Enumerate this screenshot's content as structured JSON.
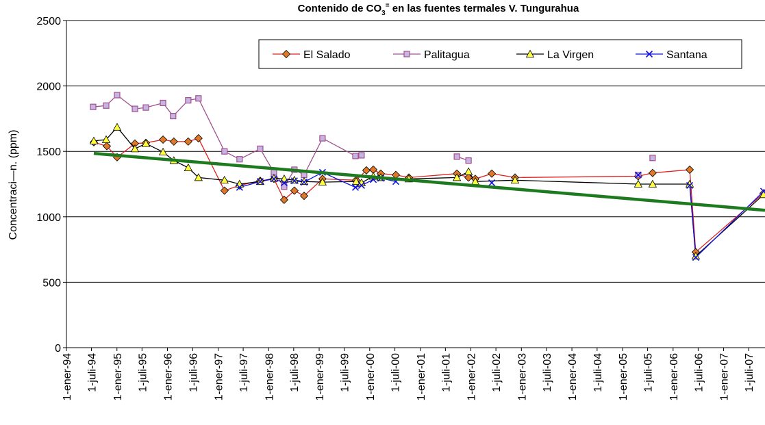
{
  "chart_data": {
    "type": "line",
    "title": {
      "text": "Contenido de CO",
      "sub": "3",
      "sup": "=",
      "rest": " en las fuentes termales V. Tungurahua"
    },
    "y_label": "Concentraci—n. (ppm)",
    "xlim": [
      "1994-01-01",
      "2007-10-27"
    ],
    "ylim": [
      0,
      2500
    ],
    "yticks": [
      0,
      500,
      1000,
      1500,
      2000,
      2500
    ],
    "xticks": [
      {
        "value": "1994-01-01",
        "label": "1-ener-94"
      },
      {
        "value": "1994-07-01",
        "label": "1-juli-94"
      },
      {
        "value": "1995-01-01",
        "label": "1-ener-95"
      },
      {
        "value": "1995-07-01",
        "label": "1-juli-95"
      },
      {
        "value": "1996-01-01",
        "label": "1-ener-96"
      },
      {
        "value": "1996-07-01",
        "label": "1-juli-96"
      },
      {
        "value": "1997-01-01",
        "label": "1-ener-97"
      },
      {
        "value": "1997-07-01",
        "label": "1-juli-97"
      },
      {
        "value": "1998-01-01",
        "label": "1-ener-98"
      },
      {
        "value": "1998-07-01",
        "label": "1-juli-98"
      },
      {
        "value": "1999-01-01",
        "label": "1-ener-99"
      },
      {
        "value": "1999-07-01",
        "label": "1-juli-99"
      },
      {
        "value": "2000-01-01",
        "label": "1-ener-00"
      },
      {
        "value": "2000-07-01",
        "label": "1-juli-00"
      },
      {
        "value": "2001-01-01",
        "label": "1-ener-01"
      },
      {
        "value": "2001-07-01",
        "label": "1-juli-01"
      },
      {
        "value": "2002-01-01",
        "label": "1-ener-02"
      },
      {
        "value": "2002-07-01",
        "label": "1-juli-02"
      },
      {
        "value": "2003-01-01",
        "label": "1-ener-03"
      },
      {
        "value": "2003-07-01",
        "label": "1-juli-03"
      },
      {
        "value": "2004-01-01",
        "label": "1-ener-04"
      },
      {
        "value": "2004-07-01",
        "label": "1-juli-04"
      },
      {
        "value": "2005-01-01",
        "label": "1-ener-05"
      },
      {
        "value": "2005-07-01",
        "label": "1-juli-05"
      },
      {
        "value": "2006-01-01",
        "label": "1-ener-06"
      },
      {
        "value": "2006-07-01",
        "label": "1-juli-06"
      },
      {
        "value": "2007-01-01",
        "label": "1-ener-07"
      },
      {
        "value": "2007-07-01",
        "label": "1-juli-07"
      }
    ],
    "grid": true,
    "series": [
      {
        "name": "El Salado",
        "color": "#dd2020",
        "marker": "diamond",
        "marker_color": "#e07828",
        "x": [
          "1994-07-18",
          "1994-10-20",
          "1995-01-02",
          "1995-05-11",
          "1995-07-29",
          "1995-11-30",
          "1996-02-16",
          "1996-05-30",
          "1996-08-12",
          "1997-02-16",
          "1997-06-05",
          "1997-11-01",
          "1998-02-08",
          "1998-04-23",
          "1998-07-06",
          "1998-09-14",
          "1999-01-25",
          "1999-09-25",
          "1999-12-08",
          "2000-01-27",
          "2000-03-21",
          "2000-07-08",
          "2000-10-10",
          "2001-09-22",
          "2001-12-15",
          "2002-02-02",
          "2002-06-01",
          "2002-11-16",
          "2005-04-24",
          "2005-08-06",
          "2006-05-01",
          "2006-06-14",
          "2007-10-17"
        ],
        "values": [
          1570,
          1540,
          1455,
          1560,
          1565,
          1590,
          1575,
          1575,
          1600,
          1200,
          1240,
          1275,
          1290,
          1130,
          1200,
          1160,
          1290,
          1280,
          1355,
          1360,
          1330,
          1320,
          1300,
          1330,
          1300,
          1290,
          1330,
          1300,
          1310,
          1335,
          1360,
          730,
          1180
        ]
      },
      {
        "name": "Palitagua",
        "color": "#a05090",
        "marker": "square",
        "marker_color": "#c8b4e0",
        "x": [
          "1994-07-13",
          "1994-10-15",
          "1995-01-02",
          "1995-05-11",
          "1995-07-29",
          "1995-11-30",
          "1996-02-11",
          "1996-05-30",
          "1996-08-12",
          "1997-02-16",
          "1997-06-05",
          "1997-11-01",
          "1998-02-08",
          "1998-04-23",
          "1998-07-06",
          "1998-09-14",
          "1999-01-25",
          "1999-09-20",
          "1999-11-03",
          "2001-01-01",
          "2001-09-22",
          "2001-12-15",
          "2003-06-01",
          "2005-04-24",
          "2005-06-01",
          "2005-08-06"
        ],
        "values": [
          1840,
          1850,
          1930,
          1825,
          1835,
          1870,
          1770,
          1890,
          1905,
          1500,
          1440,
          1520,
          1340,
          1230,
          1360,
          1320,
          1600,
          1465,
          1470,
          null,
          1460,
          1430,
          null,
          1320,
          null,
          1450
        ]
      },
      {
        "name": "La Virgen",
        "color": "#000000",
        "marker": "triangle",
        "marker_color": "#ffff40",
        "x": [
          "1994-07-18",
          "1994-10-15",
          "1995-01-02",
          "1995-05-11",
          "1995-07-29",
          "1995-11-30",
          "1996-02-16",
          "1996-05-30",
          "1996-08-12",
          "1997-02-16",
          "1997-06-05",
          "1997-11-01",
          "1998-02-08",
          "1998-04-23",
          "1998-07-06",
          "1998-09-14",
          "1999-01-25",
          "1999-09-25",
          "1999-11-03",
          "2000-01-27",
          "2000-03-21",
          "2000-10-10",
          "2001-09-22",
          "2001-12-15",
          "2002-02-02",
          "2002-11-16",
          "2005-04-24",
          "2005-08-06",
          "2006-05-01",
          "2006-06-14",
          "2007-10-17"
        ],
        "values": [
          1580,
          1590,
          1685,
          1520,
          1560,
          1495,
          1430,
          1375,
          1300,
          1280,
          1250,
          1270,
          1295,
          1290,
          1280,
          1270,
          1265,
          1270,
          1260,
          1310,
          1300,
          1290,
          1300,
          1345,
          1270,
          1280,
          1250,
          1250,
          1250,
          700,
          1170
        ]
      },
      {
        "name": "Santana",
        "color": "#1010e0",
        "marker": "x",
        "marker_color": "#1010e0",
        "x": [
          "1997-06-05",
          "1997-11-01",
          "1998-02-08",
          "1998-04-23",
          "1998-07-06",
          "1998-09-14",
          "1999-01-25",
          "1999-09-20",
          "1999-11-03",
          "2000-01-27",
          "2000-03-21",
          "2000-07-08",
          "2001-06-01",
          "2002-06-01",
          "2004-01-01",
          "2005-04-24",
          "2005-12-01",
          "2006-05-01",
          "2006-06-14",
          "2007-10-17"
        ],
        "values": [
          1225,
          1270,
          1290,
          1260,
          1275,
          1265,
          1340,
          1225,
          1240,
          1285,
          1295,
          1270,
          null,
          1260,
          null,
          1320,
          null,
          1240,
          690,
          1195
        ]
      }
    ],
    "trendline": {
      "color": "#1e7a1e",
      "x": [
        "1994-07-18",
        "2007-10-27"
      ],
      "values": [
        1485,
        1050
      ]
    }
  }
}
